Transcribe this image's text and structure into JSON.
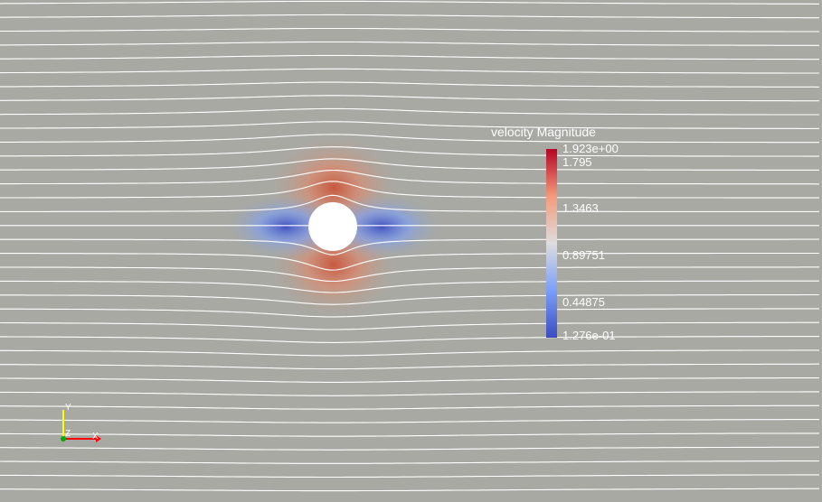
{
  "scalar_bar": {
    "title": "velocity Magnitude",
    "labels": [
      "1.923e+00",
      "1.795",
      "1.3463",
      "0.89751",
      "0.44875",
      "1.276e-01"
    ],
    "range": [
      0.1276,
      1.923
    ],
    "colormap": [
      "#3b4cc0",
      "#7b9ff9",
      "#dddddd",
      "#f49a7b",
      "#b40426"
    ]
  },
  "orientation_axes": {
    "x_label": "X",
    "y_label": "Y",
    "z_label": "Z",
    "x_color": "#ff0000",
    "y_color": "#ffff00",
    "z_color": "#00aa00"
  },
  "colors": {
    "background": "#a8a9a3",
    "streamline": "#ffffff",
    "cylinder": "#ffffff"
  }
}
